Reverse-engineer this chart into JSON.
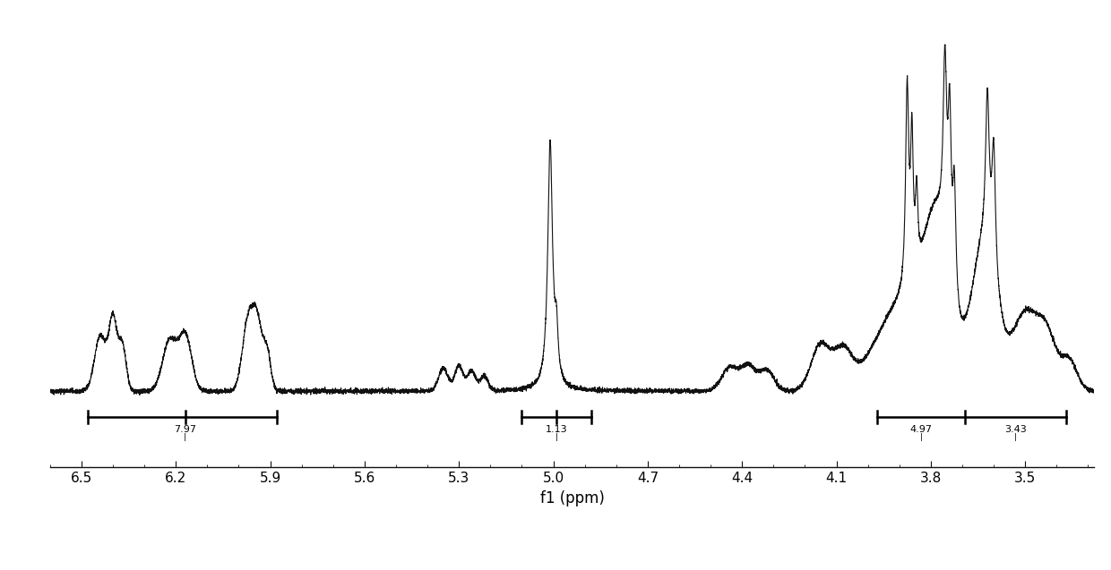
{
  "xlabel": "f1 (ppm)",
  "xlim": [
    6.6,
    3.28
  ],
  "background_color": "#ffffff",
  "line_color": "#111111",
  "line_width": 0.8,
  "tick_label_fontsize": 11,
  "xlabel_fontsize": 12,
  "xticks": [
    6.5,
    6.2,
    5.9,
    5.6,
    5.3,
    5.0,
    4.7,
    4.4,
    4.1,
    3.8,
    3.5
  ]
}
